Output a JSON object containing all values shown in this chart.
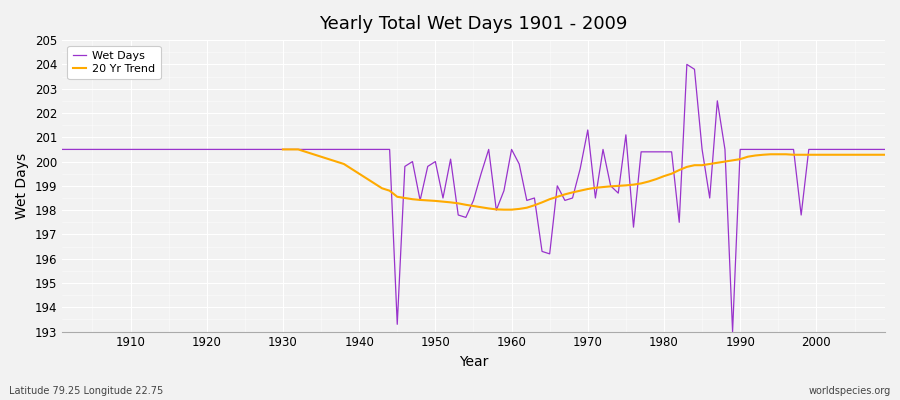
{
  "title": "Yearly Total Wet Days 1901 - 2009",
  "xlabel": "Year",
  "ylabel": "Wet Days",
  "footnote_left": "Latitude 79.25 Longitude 22.75",
  "footnote_right": "worldspecies.org",
  "legend_wet": "Wet Days",
  "legend_trend": "20 Yr Trend",
  "wet_color": "#9933cc",
  "trend_color": "#ffaa00",
  "bg_color": "#f0f0f0",
  "ylim": [
    193,
    205
  ],
  "xlim": [
    1901,
    2009
  ],
  "yticks": [
    193,
    194,
    195,
    196,
    197,
    198,
    199,
    200,
    201,
    202,
    203,
    204,
    205
  ],
  "xticks": [
    1910,
    1920,
    1930,
    1940,
    1950,
    1960,
    1970,
    1980,
    1990,
    2000
  ],
  "wet_years": [
    1901,
    1902,
    1903,
    1904,
    1905,
    1906,
    1907,
    1908,
    1909,
    1910,
    1911,
    1912,
    1913,
    1914,
    1915,
    1916,
    1917,
    1918,
    1919,
    1920,
    1921,
    1922,
    1923,
    1924,
    1925,
    1926,
    1927,
    1928,
    1929,
    1930,
    1931,
    1932,
    1933,
    1934,
    1935,
    1936,
    1937,
    1938,
    1939,
    1940,
    1941,
    1942,
    1943,
    1944,
    1945,
    1946,
    1947,
    1948,
    1949,
    1950,
    1951,
    1952,
    1953,
    1954,
    1955,
    1956,
    1957,
    1958,
    1959,
    1960,
    1961,
    1962,
    1963,
    1964,
    1965,
    1966,
    1967,
    1968,
    1969,
    1970,
    1971,
    1972,
    1973,
    1974,
    1975,
    1976,
    1977,
    1978,
    1979,
    1980,
    1981,
    1982,
    1983,
    1984,
    1985,
    1986,
    1987,
    1988,
    1989,
    1990,
    1991,
    1992,
    1993,
    1994,
    1995,
    1996,
    1997,
    1998,
    1999,
    2000,
    2001,
    2002,
    2003,
    2004,
    2005,
    2006,
    2007,
    2008,
    2009
  ],
  "wet_values": [
    200.5,
    200.5,
    200.5,
    200.5,
    200.5,
    200.5,
    200.5,
    200.5,
    200.5,
    200.5,
    200.5,
    200.5,
    200.5,
    200.5,
    200.5,
    200.5,
    200.5,
    200.5,
    200.5,
    200.5,
    200.5,
    200.5,
    200.5,
    200.5,
    200.5,
    200.5,
    200.5,
    200.5,
    200.5,
    200.5,
    200.5,
    200.5,
    200.5,
    200.5,
    200.5,
    200.5,
    200.5,
    200.5,
    200.5,
    200.5,
    200.5,
    200.5,
    200.5,
    200.5,
    193.3,
    199.8,
    200.0,
    198.4,
    199.8,
    200.0,
    198.5,
    200.1,
    197.8,
    197.7,
    198.4,
    199.5,
    200.5,
    198.0,
    198.8,
    200.5,
    199.9,
    198.4,
    198.5,
    196.3,
    196.2,
    199.0,
    198.4,
    198.5,
    199.7,
    201.3,
    198.5,
    200.5,
    199.0,
    198.7,
    201.1,
    197.3,
    200.4,
    200.4,
    200.4,
    200.4,
    200.4,
    197.5,
    204.0,
    203.8,
    200.5,
    198.5,
    202.5,
    200.5,
    193.0,
    200.5,
    200.5,
    200.5,
    200.5,
    200.5,
    200.5,
    200.5,
    200.5,
    197.8,
    200.5,
    200.5,
    200.5,
    200.5,
    200.5,
    200.5,
    200.5,
    200.5,
    200.5,
    200.5,
    200.5
  ],
  "trend_years": [
    1930,
    1931,
    1932,
    1933,
    1934,
    1935,
    1936,
    1937,
    1938,
    1939,
    1940,
    1941,
    1942,
    1943,
    1944,
    1945,
    1946,
    1947,
    1948,
    1949,
    1950,
    1951,
    1952,
    1953,
    1954,
    1955,
    1956,
    1957,
    1958,
    1959,
    1960,
    1961,
    1962,
    1963,
    1964,
    1965,
    1966,
    1967,
    1968,
    1969,
    1970,
    1971,
    1972,
    1973,
    1974,
    1975,
    1976,
    1977,
    1978,
    1979,
    1980,
    1981,
    1982,
    1983,
    1984,
    1985,
    1986,
    1987,
    1988,
    1989,
    1990,
    1991,
    1992,
    1993,
    1994,
    1995,
    1996,
    1997,
    1998,
    1999,
    2000,
    2001,
    2002,
    2003,
    2004,
    2005,
    2006,
    2007,
    2008,
    2009
  ],
  "trend_values": [
    200.5,
    200.5,
    200.5,
    200.4,
    200.3,
    200.2,
    200.1,
    200.0,
    199.9,
    199.7,
    199.5,
    199.3,
    199.1,
    198.9,
    198.8,
    198.55,
    198.5,
    198.45,
    198.42,
    198.4,
    198.38,
    198.35,
    198.32,
    198.28,
    198.22,
    198.17,
    198.12,
    198.07,
    198.03,
    198.02,
    198.02,
    198.05,
    198.1,
    198.2,
    198.32,
    198.45,
    198.55,
    198.65,
    198.73,
    198.8,
    198.87,
    198.92,
    198.95,
    198.98,
    199.0,
    199.02,
    199.05,
    199.1,
    199.18,
    199.28,
    199.4,
    199.5,
    199.65,
    199.78,
    199.85,
    199.85,
    199.9,
    199.95,
    200.0,
    200.05,
    200.1,
    200.2,
    200.25,
    200.28,
    200.3,
    200.3,
    200.3,
    200.28,
    200.28,
    200.28,
    200.28,
    200.28,
    200.28,
    200.28,
    200.28,
    200.28,
    200.28,
    200.28,
    200.28,
    200.28
  ]
}
